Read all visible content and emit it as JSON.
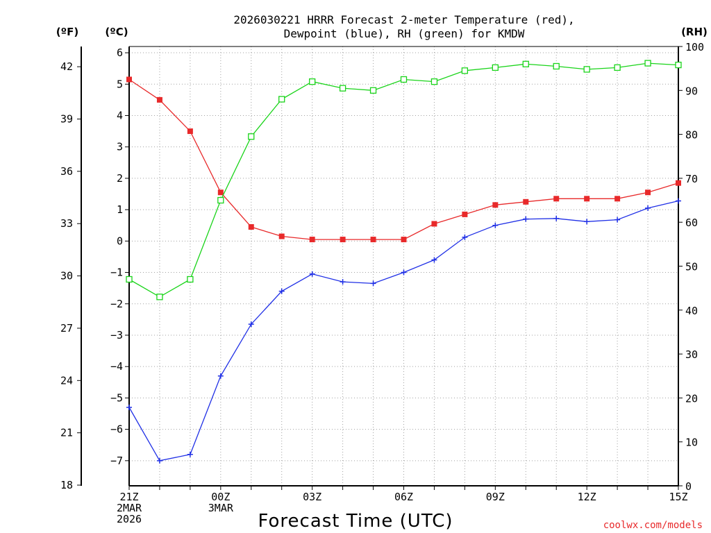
{
  "chart_data": {
    "type": "line",
    "title": [
      "2026030221 HRRR Forecast 2-meter Temperature (red),",
      "Dewpoint (blue), RH (green) for KMDW"
    ],
    "xlabel": "Forecast Time (UTC)",
    "credit": "coolwx.com/models",
    "units": {
      "fahrenheit": "(ºF)",
      "celsius": "(ºC)",
      "rh": "(RH)"
    },
    "x": [
      0,
      1,
      2,
      3,
      4,
      5,
      6,
      7,
      8,
      9,
      10,
      11,
      12,
      13,
      14,
      15,
      16,
      17,
      18
    ],
    "xlim": [
      0,
      18
    ],
    "x_ticks": [
      {
        "x": 0,
        "lines": [
          "21Z",
          "2MAR",
          "2026"
        ]
      },
      {
        "x": 3,
        "lines": [
          "00Z",
          "3MAR"
        ]
      },
      {
        "x": 6,
        "lines": [
          "03Z"
        ]
      },
      {
        "x": 9,
        "lines": [
          "06Z"
        ]
      },
      {
        "x": 12,
        "lines": [
          "09Z"
        ]
      },
      {
        "x": 15,
        "lines": [
          "12Z"
        ]
      },
      {
        "x": 18,
        "lines": [
          "15Z"
        ]
      }
    ],
    "y_celsius": {
      "lim": [
        -7.8,
        6.2
      ],
      "ticks": [
        -7,
        -6,
        -5,
        -4,
        -3,
        -2,
        -1,
        0,
        1,
        2,
        3,
        4,
        5,
        6
      ]
    },
    "y_fahrenheit": {
      "ticks": [
        18,
        21,
        24,
        27,
        30,
        33,
        36,
        39,
        42
      ]
    },
    "y_rh": {
      "lim": [
        0,
        100
      ],
      "ticks": [
        0,
        10,
        20,
        30,
        40,
        50,
        60,
        70,
        80,
        90,
        100
      ]
    },
    "grid": true,
    "series": [
      {
        "name": "Temperature",
        "axis": "celsius",
        "color": "#e8292a",
        "marker": "filled-square",
        "values": [
          5.15,
          4.5,
          3.5,
          1.55,
          0.45,
          0.15,
          0.05,
          0.05,
          0.05,
          0.05,
          0.55,
          0.85,
          1.15,
          1.25,
          1.35,
          1.35,
          1.35,
          1.55,
          1.85
        ]
      },
      {
        "name": "Dewpoint",
        "axis": "celsius",
        "color": "#1f2fe6",
        "marker": "plus",
        "values": [
          -5.3,
          -7.0,
          -6.8,
          -4.3,
          -2.65,
          -1.6,
          -1.05,
          -1.3,
          -1.35,
          -1.0,
          -0.6,
          0.12,
          0.5,
          0.7,
          0.72,
          0.62,
          0.68,
          1.05,
          1.28
        ]
      },
      {
        "name": "RH",
        "axis": "rh",
        "color": "#19d419",
        "marker": "open-square",
        "values": [
          47,
          43,
          47,
          65,
          79.5,
          88,
          92,
          90.5,
          90,
          92.5,
          92,
          94.5,
          95.2,
          96,
          95.5,
          94.8,
          95.2,
          96.2,
          95.8
        ]
      }
    ]
  }
}
